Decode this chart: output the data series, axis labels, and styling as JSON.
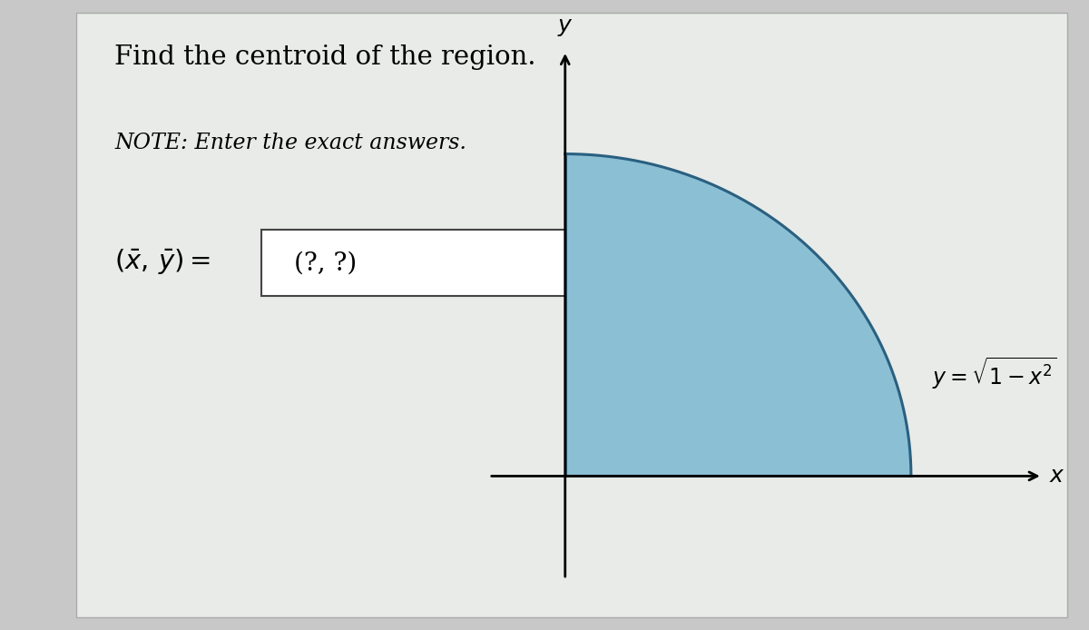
{
  "title": "Find the centroid of the region.",
  "note": "NOTE: Enter the exact answers.",
  "box_text": "(?, ?)",
  "curve_label": "$y = \\sqrt{1 - x^2}$",
  "x_label": "$x$",
  "y_label": "$y$",
  "outer_bg": "#c8c8c8",
  "inner_bg": "#e8ebe8",
  "region_color": "#8bbfd4",
  "region_edge_color": "#2a6080",
  "axis_color": "#000000",
  "text_color": "#000000",
  "box_bg_color": "#ffffff",
  "title_fontsize": 21,
  "note_fontsize": 17,
  "eq_fontsize": 20,
  "curve_label_fontsize": 17
}
